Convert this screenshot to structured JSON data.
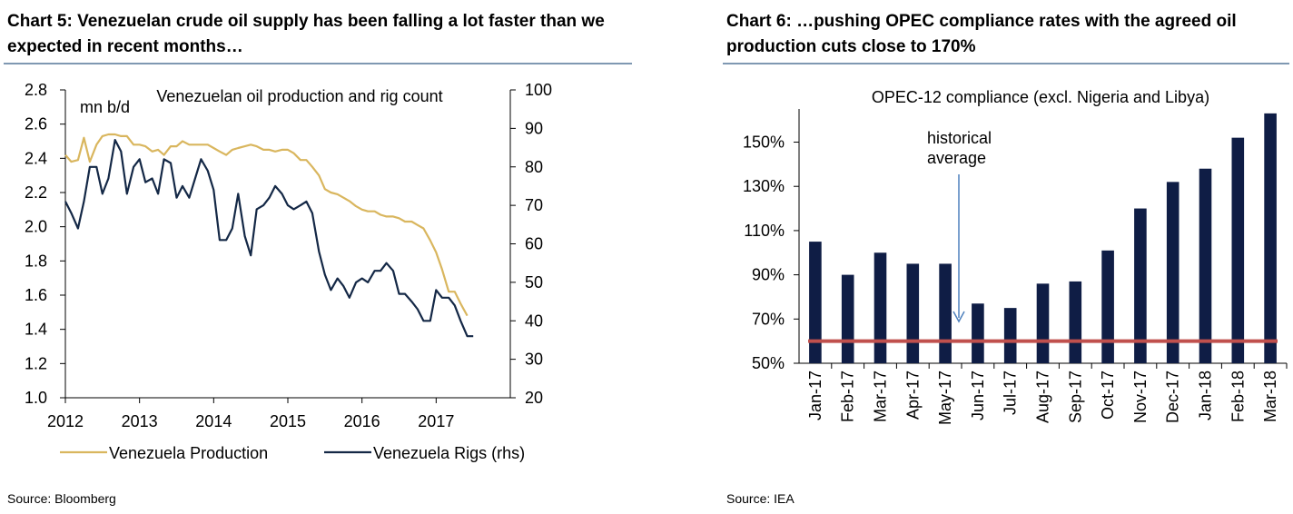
{
  "chart5": {
    "title_line1": "Chart 5: Venezuelan crude oil supply has been falling a lot faster than we",
    "title_line2": "expected in recent months…",
    "source": "Source: Bloomberg",
    "chart_data": {
      "type": "line",
      "title": "Venezuelan oil production and rig count",
      "ylabel": "mn b/d",
      "ylim": [
        1.0,
        2.8
      ],
      "y_ticks": [
        "2.8",
        "2.6",
        "2.4",
        "2.2",
        "2.0",
        "1.8",
        "1.6",
        "1.4",
        "1.2",
        "1.0"
      ],
      "y2lim": [
        20,
        100
      ],
      "y2_ticks": [
        "100",
        "90",
        "80",
        "70",
        "60",
        "50",
        "40",
        "30",
        "20"
      ],
      "xlim": [
        2012,
        2018
      ],
      "x_ticks": [
        "2012",
        "2013",
        "2014",
        "2015",
        "2016",
        "2017"
      ],
      "legend": [
        "Venezuela Production",
        "Venezuela Rigs (rhs)"
      ],
      "series": [
        {
          "name": "Venezuela Production",
          "axis": "left",
          "color": "#d9b65e",
          "x": [
            2012.0,
            2012.08,
            2012.17,
            2012.25,
            2012.33,
            2012.42,
            2012.5,
            2012.58,
            2012.67,
            2012.75,
            2012.83,
            2012.92,
            2013.0,
            2013.08,
            2013.17,
            2013.25,
            2013.33,
            2013.42,
            2013.5,
            2013.58,
            2013.67,
            2013.75,
            2013.83,
            2013.92,
            2014.0,
            2014.08,
            2014.17,
            2014.25,
            2014.33,
            2014.42,
            2014.5,
            2014.58,
            2014.67,
            2014.75,
            2014.83,
            2014.92,
            2015.0,
            2015.08,
            2015.17,
            2015.25,
            2015.33,
            2015.42,
            2015.5,
            2015.58,
            2015.67,
            2015.75,
            2015.83,
            2015.92,
            2016.0,
            2016.08,
            2016.17,
            2016.25,
            2016.33,
            2016.42,
            2016.5,
            2016.58,
            2016.67,
            2016.75,
            2016.83,
            2016.92,
            2017.0,
            2017.08,
            2017.17,
            2017.25,
            2017.33,
            2017.42
          ],
          "values": [
            2.42,
            2.38,
            2.39,
            2.52,
            2.38,
            2.48,
            2.53,
            2.54,
            2.54,
            2.53,
            2.53,
            2.48,
            2.48,
            2.47,
            2.44,
            2.45,
            2.42,
            2.47,
            2.47,
            2.5,
            2.48,
            2.48,
            2.48,
            2.48,
            2.46,
            2.44,
            2.42,
            2.45,
            2.46,
            2.47,
            2.48,
            2.47,
            2.45,
            2.45,
            2.44,
            2.45,
            2.45,
            2.43,
            2.39,
            2.39,
            2.35,
            2.3,
            2.22,
            2.2,
            2.19,
            2.17,
            2.15,
            2.12,
            2.1,
            2.09,
            2.09,
            2.07,
            2.06,
            2.06,
            2.05,
            2.03,
            2.03,
            2.01,
            1.99,
            1.92,
            1.85,
            1.75,
            1.62,
            1.62,
            1.55,
            1.48
          ]
        },
        {
          "name": "Venezuela Rigs (rhs)",
          "axis": "right",
          "color": "#142846",
          "x": [
            2012.0,
            2012.08,
            2012.17,
            2012.25,
            2012.33,
            2012.42,
            2012.5,
            2012.58,
            2012.67,
            2012.75,
            2012.83,
            2012.92,
            2013.0,
            2013.08,
            2013.17,
            2013.25,
            2013.33,
            2013.42,
            2013.5,
            2013.58,
            2013.67,
            2013.75,
            2013.83,
            2013.92,
            2014.0,
            2014.08,
            2014.17,
            2014.25,
            2014.33,
            2014.42,
            2014.5,
            2014.58,
            2014.67,
            2014.75,
            2014.83,
            2014.92,
            2015.0,
            2015.08,
            2015.17,
            2015.25,
            2015.33,
            2015.42,
            2015.5,
            2015.58,
            2015.67,
            2015.75,
            2015.83,
            2015.92,
            2016.0,
            2016.08,
            2016.17,
            2016.25,
            2016.33,
            2016.42,
            2016.5,
            2016.58,
            2016.67,
            2016.75,
            2016.83,
            2016.92,
            2017.0,
            2017.08,
            2017.17,
            2017.25,
            2017.33,
            2017.42,
            2017.5
          ],
          "values": [
            71,
            68,
            64,
            71,
            80,
            80,
            73,
            77,
            87,
            84,
            73,
            80,
            82,
            76,
            77,
            73,
            82,
            81,
            72,
            75,
            72,
            77,
            82,
            79,
            74,
            61,
            61,
            64,
            73,
            62,
            57,
            69,
            70,
            72,
            75,
            73,
            70,
            69,
            70,
            71,
            68,
            58,
            52,
            48,
            51,
            49,
            46,
            50,
            51,
            50,
            53,
            53,
            55,
            53,
            47,
            47,
            45,
            43,
            40,
            40,
            48,
            46,
            46,
            44,
            40,
            36,
            36
          ]
        }
      ]
    }
  },
  "chart6": {
    "title_line1": "Chart 6: …pushing OPEC compliance rates with the agreed oil",
    "title_line2": "production cuts close to 170%",
    "source": "Source: IEA",
    "annotation_line1": "historical",
    "annotation_line2": "average",
    "chart_data": {
      "type": "bar",
      "title": "OPEC-12 compliance (excl. Nigeria and Libya)",
      "categories": [
        "Jan-17",
        "Feb-17",
        "Mar-17",
        "Apr-17",
        "May-17",
        "Jun-17",
        "Jul-17",
        "Aug-17",
        "Sep-17",
        "Oct-17",
        "Nov-17",
        "Dec-17",
        "Jan-18",
        "Feb-18",
        "Mar-18"
      ],
      "values": [
        105,
        90,
        100,
        95,
        95,
        77,
        75,
        86,
        87,
        101,
        120,
        132,
        138,
        152,
        163
      ],
      "unit": "%",
      "ylim": [
        50,
        165
      ],
      "y_ticks": [
        "150%",
        "130%",
        "110%",
        "90%",
        "70%",
        "50%"
      ],
      "y_tick_values": [
        150,
        130,
        110,
        90,
        70,
        50
      ],
      "reference_line": {
        "label": "historical average",
        "value": 60
      },
      "bar_color": "#0f1d45",
      "reference_color": "#c0504d",
      "arrow_color": "#4f81bd"
    }
  }
}
